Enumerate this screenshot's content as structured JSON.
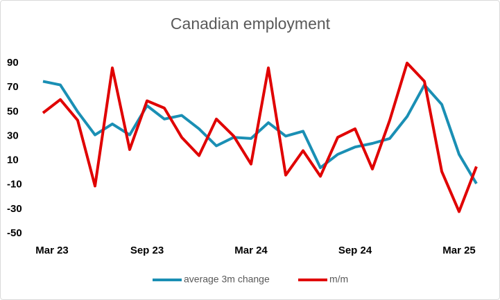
{
  "chart_data": {
    "type": "line",
    "title": "Canadian employment",
    "categories": [
      "Mar 23",
      null,
      null,
      null,
      null,
      null,
      "Sep 23",
      null,
      null,
      null,
      null,
      null,
      "Mar 24",
      null,
      null,
      null,
      null,
      null,
      "Sep 24",
      null,
      null,
      null,
      null,
      null,
      "Mar 25",
      null
    ],
    "series": [
      {
        "name": "average 3m change",
        "color": "#1a8fb4",
        "values": [
          75,
          72,
          50,
          31,
          40,
          31,
          55,
          44,
          47,
          36,
          22,
          29,
          28,
          41,
          30,
          34,
          4,
          15,
          21,
          24,
          28,
          46,
          72,
          56,
          15,
          -9
        ]
      },
      {
        "name": "m/m",
        "color": "#e00000",
        "values": [
          49,
          60,
          43,
          -11,
          86,
          19,
          59,
          53,
          29,
          14,
          44,
          30,
          7,
          86,
          -2,
          18,
          -3,
          29,
          36,
          3,
          43,
          90,
          75,
          1,
          -32,
          5
        ]
      }
    ],
    "ylim": [
      -50,
      90
    ],
    "yticks": [
      -50,
      -30,
      -10,
      10,
      30,
      50,
      70,
      90
    ],
    "grid": false,
    "legend": "bottom"
  }
}
